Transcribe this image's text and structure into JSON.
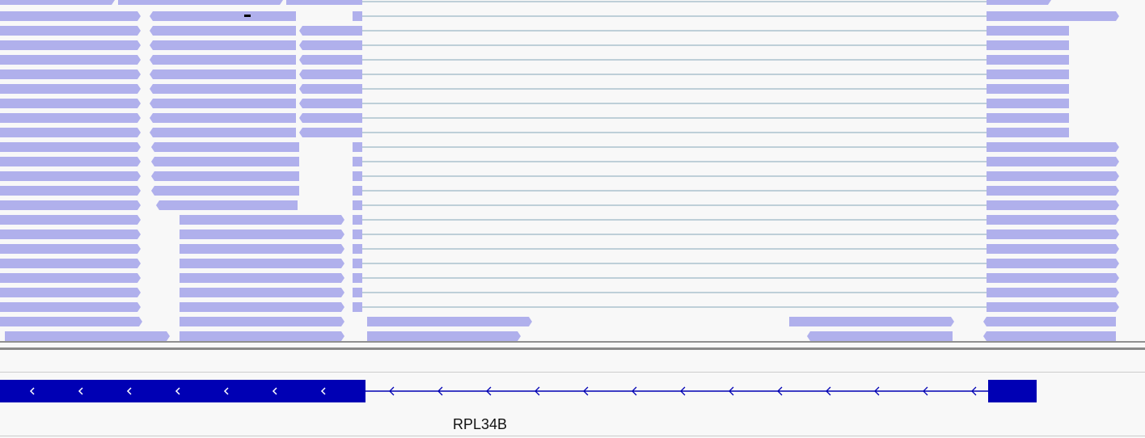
{
  "viewer": {
    "alignment_color": "#b0b0ec",
    "junction_color": "#9ab6c4",
    "mismatch_color": "#000000",
    "gene_color": "#0000b4",
    "background": "#f8f8f8"
  },
  "gene_track": {
    "gene_name": "RPL34B",
    "strand": "minus"
  }
}
